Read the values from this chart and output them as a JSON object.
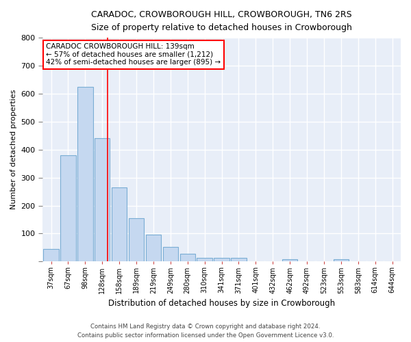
{
  "title1": "CARADOC, CROWBOROUGH HILL, CROWBOROUGH, TN6 2RS",
  "title2": "Size of property relative to detached houses in Crowborough",
  "xlabel": "Distribution of detached houses by size in Crowborough",
  "ylabel": "Number of detached properties",
  "bar_labels": [
    "37sqm",
    "67sqm",
    "98sqm",
    "128sqm",
    "158sqm",
    "189sqm",
    "219sqm",
    "249sqm",
    "280sqm",
    "310sqm",
    "341sqm",
    "371sqm",
    "401sqm",
    "432sqm",
    "462sqm",
    "492sqm",
    "523sqm",
    "553sqm",
    "583sqm",
    "614sqm",
    "644sqm"
  ],
  "bar_values": [
    45,
    380,
    625,
    440,
    265,
    155,
    95,
    52,
    28,
    14,
    12,
    12,
    0,
    0,
    8,
    0,
    0,
    8,
    0,
    0,
    0
  ],
  "bar_color": "#c5d8f0",
  "bar_edgecolor": "#7aadd4",
  "figure_bg": "#ffffff",
  "axes_bg": "#e8eef8",
  "grid_color": "#ffffff",
  "red_line_x": 3.3,
  "annotation_line1": "CARADOC CROWBOROUGH HILL: 139sqm",
  "annotation_line2": "← 57% of detached houses are smaller (1,212)",
  "annotation_line3": "42% of semi-detached houses are larger (895) →",
  "footer1": "Contains HM Land Registry data © Crown copyright and database right 2024.",
  "footer2": "Contains public sector information licensed under the Open Government Licence v3.0.",
  "ylim": [
    0,
    800
  ],
  "yticks": [
    0,
    100,
    200,
    300,
    400,
    500,
    600,
    700,
    800
  ]
}
